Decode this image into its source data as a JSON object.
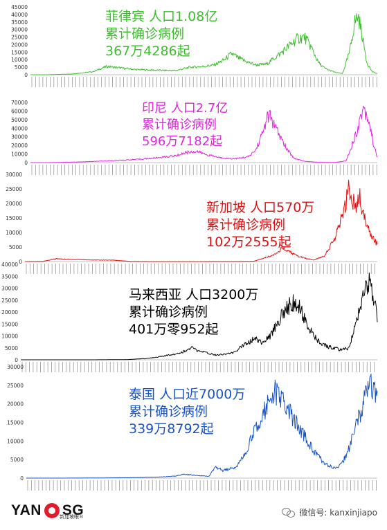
{
  "chart_data": [
    {
      "type": "line",
      "color": "#3cbf2c",
      "annotation": [
        "菲律宾 人口1.08亿",
        "累计确诊病例",
        "367万4286起"
      ],
      "ylim": [
        0,
        45000
      ],
      "yticks": [
        0,
        5000,
        10000,
        15000,
        20000,
        25000,
        30000,
        35000,
        40000,
        45000
      ],
      "x_range": [
        "3月1日",
        "3月15日"
      ],
      "curve": [
        [
          0,
          0
        ],
        [
          0.05,
          0
        ],
        [
          0.12,
          500
        ],
        [
          0.18,
          2000
        ],
        [
          0.22,
          5500
        ],
        [
          0.26,
          4500
        ],
        [
          0.3,
          3500
        ],
        [
          0.36,
          3000
        ],
        [
          0.42,
          2800
        ],
        [
          0.46,
          5000
        ],
        [
          0.5,
          5500
        ],
        [
          0.53,
          6500
        ],
        [
          0.56,
          10000
        ],
        [
          0.58,
          14000
        ],
        [
          0.6,
          11000
        ],
        [
          0.63,
          8000
        ],
        [
          0.65,
          6500
        ],
        [
          0.68,
          7000
        ],
        [
          0.72,
          14000
        ],
        [
          0.75,
          20000
        ],
        [
          0.77,
          24000
        ],
        [
          0.79,
          25000
        ],
        [
          0.81,
          18000
        ],
        [
          0.83,
          8000
        ],
        [
          0.85,
          4000
        ],
        [
          0.88,
          1500
        ],
        [
          0.9,
          800
        ],
        [
          0.92,
          15000
        ],
        [
          0.935,
          35000
        ],
        [
          0.945,
          39000
        ],
        [
          0.955,
          28000
        ],
        [
          0.97,
          8000
        ],
        [
          0.985,
          2000
        ],
        [
          1,
          800
        ]
      ]
    },
    {
      "type": "line",
      "color": "#e026e0",
      "annotation": [
        "印尼  人口2.7亿",
        "累计确诊病例",
        "596万7182起"
      ],
      "ylim": [
        0,
        70000
      ],
      "yticks": [
        0,
        10000,
        20000,
        30000,
        40000,
        50000,
        60000,
        70000
      ],
      "x_range": [
        "3月1日",
        "3月15日"
      ],
      "curve": [
        [
          0,
          0
        ],
        [
          0.05,
          0
        ],
        [
          0.15,
          800
        ],
        [
          0.22,
          2000
        ],
        [
          0.3,
          3500
        ],
        [
          0.35,
          5000
        ],
        [
          0.42,
          8000
        ],
        [
          0.45,
          12000
        ],
        [
          0.48,
          13000
        ],
        [
          0.51,
          9000
        ],
        [
          0.55,
          5500
        ],
        [
          0.58,
          4500
        ],
        [
          0.6,
          5000
        ],
        [
          0.63,
          7000
        ],
        [
          0.65,
          15000
        ],
        [
          0.67,
          35000
        ],
        [
          0.68,
          50000
        ],
        [
          0.69,
          55000
        ],
        [
          0.7,
          45000
        ],
        [
          0.72,
          30000
        ],
        [
          0.74,
          15000
        ],
        [
          0.76,
          5000
        ],
        [
          0.79,
          1500
        ],
        [
          0.83,
          300
        ],
        [
          0.88,
          200
        ],
        [
          0.91,
          2000
        ],
        [
          0.94,
          35000
        ],
        [
          0.96,
          65000
        ],
        [
          0.975,
          50000
        ],
        [
          0.99,
          20000
        ],
        [
          1,
          6000
        ]
      ]
    },
    {
      "type": "line",
      "color": "#e01010",
      "annotation": [
        "新加坡  人口570万",
        "累计确诊病例",
        "102万2555起"
      ],
      "ylim": [
        0,
        30000
      ],
      "yticks": [
        0,
        5000,
        10000,
        15000,
        20000,
        25000,
        30000
      ],
      "x_range": [
        "1月23日",
        "3月15日"
      ],
      "curve": [
        [
          0,
          0
        ],
        [
          0.05,
          50
        ],
        [
          0.09,
          1000
        ],
        [
          0.11,
          800
        ],
        [
          0.15,
          700
        ],
        [
          0.2,
          500
        ],
        [
          0.25,
          500
        ],
        [
          0.3,
          50
        ],
        [
          0.35,
          10
        ],
        [
          0.5,
          10
        ],
        [
          0.6,
          20
        ],
        [
          0.65,
          100
        ],
        [
          0.7,
          2000
        ],
        [
          0.73,
          4500
        ],
        [
          0.75,
          3500
        ],
        [
          0.77,
          2000
        ],
        [
          0.8,
          1000
        ],
        [
          0.82,
          500
        ],
        [
          0.85,
          2000
        ],
        [
          0.88,
          8000
        ],
        [
          0.9,
          15000
        ],
        [
          0.92,
          25000
        ],
        [
          0.94,
          18000
        ],
        [
          0.95,
          22000
        ],
        [
          0.97,
          12000
        ],
        [
          1,
          6000
        ]
      ]
    },
    {
      "type": "line",
      "color": "#000000",
      "annotation": [
        "马来西亚  人口3200万",
        "累计确诊病例",
        "401万零952起"
      ],
      "ylim": [
        0,
        40000
      ],
      "yticks": [
        0,
        5000,
        10000,
        15000,
        20000,
        25000,
        30000,
        35000,
        40000
      ],
      "x_range": [
        "1月25日",
        "3月15日"
      ],
      "curve": [
        [
          0,
          0
        ],
        [
          0.2,
          0
        ],
        [
          0.3,
          100
        ],
        [
          0.35,
          500
        ],
        [
          0.4,
          1500
        ],
        [
          0.45,
          3000
        ],
        [
          0.48,
          5000
        ],
        [
          0.5,
          3500
        ],
        [
          0.55,
          2000
        ],
        [
          0.6,
          3000
        ],
        [
          0.63,
          7000
        ],
        [
          0.66,
          9000
        ],
        [
          0.68,
          7000
        ],
        [
          0.7,
          10000
        ],
        [
          0.72,
          16000
        ],
        [
          0.74,
          20000
        ],
        [
          0.76,
          24000
        ],
        [
          0.78,
          22000
        ],
        [
          0.8,
          16000
        ],
        [
          0.82,
          10000
        ],
        [
          0.84,
          7000
        ],
        [
          0.86,
          5500
        ],
        [
          0.88,
          5000
        ],
        [
          0.9,
          4000
        ],
        [
          0.92,
          5000
        ],
        [
          0.94,
          15000
        ],
        [
          0.96,
          28000
        ],
        [
          0.975,
          33000
        ],
        [
          0.99,
          25000
        ],
        [
          1,
          18000
        ]
      ]
    },
    {
      "type": "line",
      "color": "#1a55c8",
      "annotation": [
        "泰国  人口近7000万",
        "累计确诊病例",
        "339万8792起"
      ],
      "ylim": [
        0,
        30000
      ],
      "yticks": [
        0,
        5000,
        10000,
        15000,
        20000,
        25000,
        30000
      ],
      "x_range": [
        "1月13日",
        "3月15日"
      ],
      "curve": [
        [
          0,
          0
        ],
        [
          0.1,
          0
        ],
        [
          0.2,
          50
        ],
        [
          0.3,
          100
        ],
        [
          0.38,
          300
        ],
        [
          0.42,
          500
        ],
        [
          0.45,
          1000
        ],
        [
          0.52,
          500
        ],
        [
          0.54,
          3000
        ],
        [
          0.56,
          2000
        ],
        [
          0.6,
          3000
        ],
        [
          0.63,
          8000
        ],
        [
          0.66,
          15000
        ],
        [
          0.69,
          20000
        ],
        [
          0.71,
          23000
        ],
        [
          0.73,
          21000
        ],
        [
          0.76,
          16000
        ],
        [
          0.8,
          10000
        ],
        [
          0.83,
          6000
        ],
        [
          0.85,
          4000
        ],
        [
          0.88,
          2500
        ],
        [
          0.9,
          4000
        ],
        [
          0.92,
          8000
        ],
        [
          0.94,
          14000
        ],
        [
          0.96,
          20000
        ],
        [
          0.98,
          25000
        ],
        [
          1,
          22000
        ]
      ]
    }
  ],
  "footer": {
    "logo_left": "YAN",
    "logo_right": "SG",
    "logo_sub": "新加坡眼®",
    "wechat": "微信号: kanxinjiapo"
  }
}
